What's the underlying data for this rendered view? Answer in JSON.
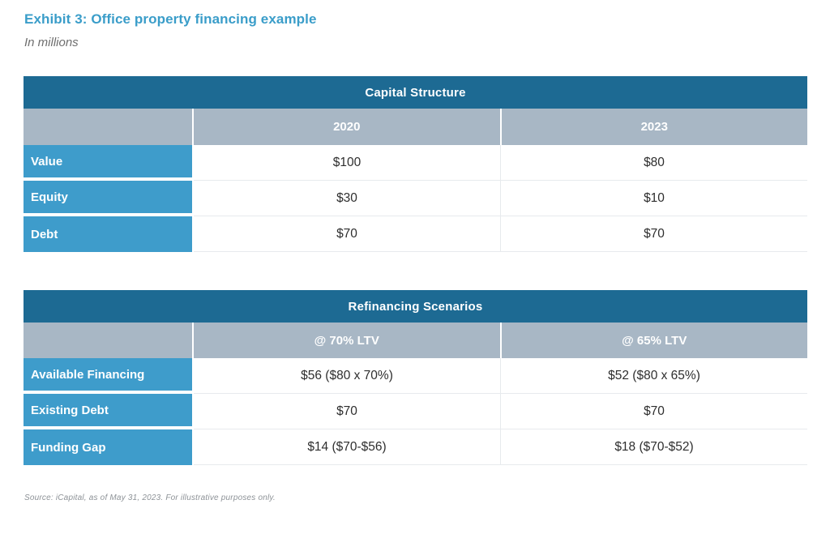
{
  "page": {
    "title": "Exhibit 3: Office property financing example",
    "subtitle": "In millions",
    "source": "Source: iCapital, as of May 31, 2023. For illustrative purposes only."
  },
  "colors": {
    "title_blue": "#3a9dc9",
    "table_header_dark_blue": "#1d6a93",
    "column_header_gray_blue": "#a8b7c5",
    "row_label_blue": "#3e9ccb",
    "value_text": "#2e2e2e",
    "source_gray": "#8d9297"
  },
  "tables": [
    {
      "title": "Capital Structure",
      "columns": [
        "2020",
        "2023"
      ],
      "rows": [
        {
          "label": "Value",
          "values": [
            "$100",
            "$80"
          ]
        },
        {
          "label": "Equity",
          "values": [
            "$30",
            "$10"
          ]
        },
        {
          "label": "Debt",
          "values": [
            "$70",
            "$70"
          ]
        }
      ]
    },
    {
      "title": "Refinancing Scenarios",
      "columns": [
        "@ 70% LTV",
        "@ 65% LTV"
      ],
      "rows": [
        {
          "label": "Available Financing",
          "values": [
            "$56 ($80 x 70%)",
            "$52 ($80 x 65%)"
          ]
        },
        {
          "label": "Existing Debt",
          "values": [
            "$70",
            "$70"
          ]
        },
        {
          "label": "Funding Gap",
          "values": [
            "$14 ($70-$56)",
            "$18 ($70-$52)"
          ]
        }
      ]
    }
  ]
}
